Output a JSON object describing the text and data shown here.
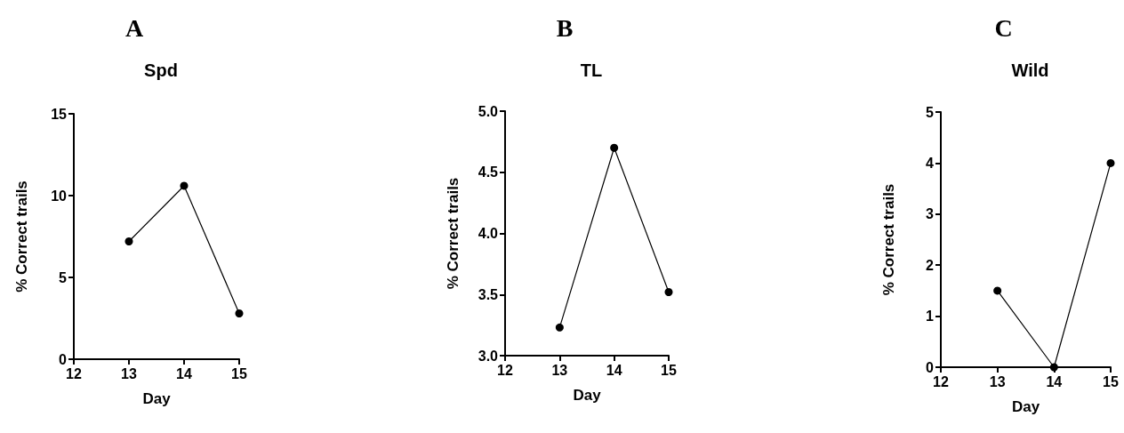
{
  "chart_data": [
    {
      "type": "line",
      "title": "Spd",
      "annotations": [
        "A"
      ],
      "xlabel": "Day",
      "ylabel": "% Correct trails",
      "x": [
        13,
        14,
        15
      ],
      "series": [
        {
          "color": "#000000",
          "values": [
            7.2,
            10.6,
            2.8
          ]
        }
      ],
      "xlim": [
        12,
        15
      ],
      "xticks": [
        12,
        13,
        14,
        15
      ],
      "ylim": [
        0,
        15
      ],
      "yticks": [
        0,
        5,
        10,
        15
      ],
      "marker": "circle",
      "line_style": "solid"
    },
    {
      "type": "line",
      "title": "TL",
      "annotations": [
        "B"
      ],
      "xlabel": "Day",
      "ylabel": "% Correct trails",
      "x": [
        13,
        14,
        15
      ],
      "series": [
        {
          "color": "#000000",
          "values": [
            3.23,
            4.7,
            3.52
          ]
        }
      ],
      "xlim": [
        12,
        15
      ],
      "xticks": [
        12,
        13,
        14,
        15
      ],
      "ylim": [
        3,
        5
      ],
      "yticks": [
        {
          "value": 3,
          "label": "3.0"
        },
        {
          "value": 3.5,
          "label": "3.5"
        },
        {
          "value": 4,
          "label": "4.0"
        },
        {
          "value": 4.5,
          "label": "4.5"
        },
        {
          "value": 5,
          "label": "5.0"
        }
      ],
      "marker": "circle",
      "line_style": "solid"
    },
    {
      "type": "line",
      "title": "Wild",
      "annotations": [
        "C"
      ],
      "xlabel": "Day",
      "ylabel": "% Correct trails",
      "x": [
        13,
        14,
        15
      ],
      "series": [
        {
          "color": "#000000",
          "values": [
            1.5,
            0,
            4
          ]
        }
      ],
      "xlim": [
        12,
        15
      ],
      "xticks": [
        12,
        13,
        14,
        15
      ],
      "ylim": [
        0,
        5
      ],
      "yticks": [
        0,
        1,
        2,
        3,
        4,
        5
      ],
      "marker": "circle",
      "line_style": "solid"
    }
  ]
}
